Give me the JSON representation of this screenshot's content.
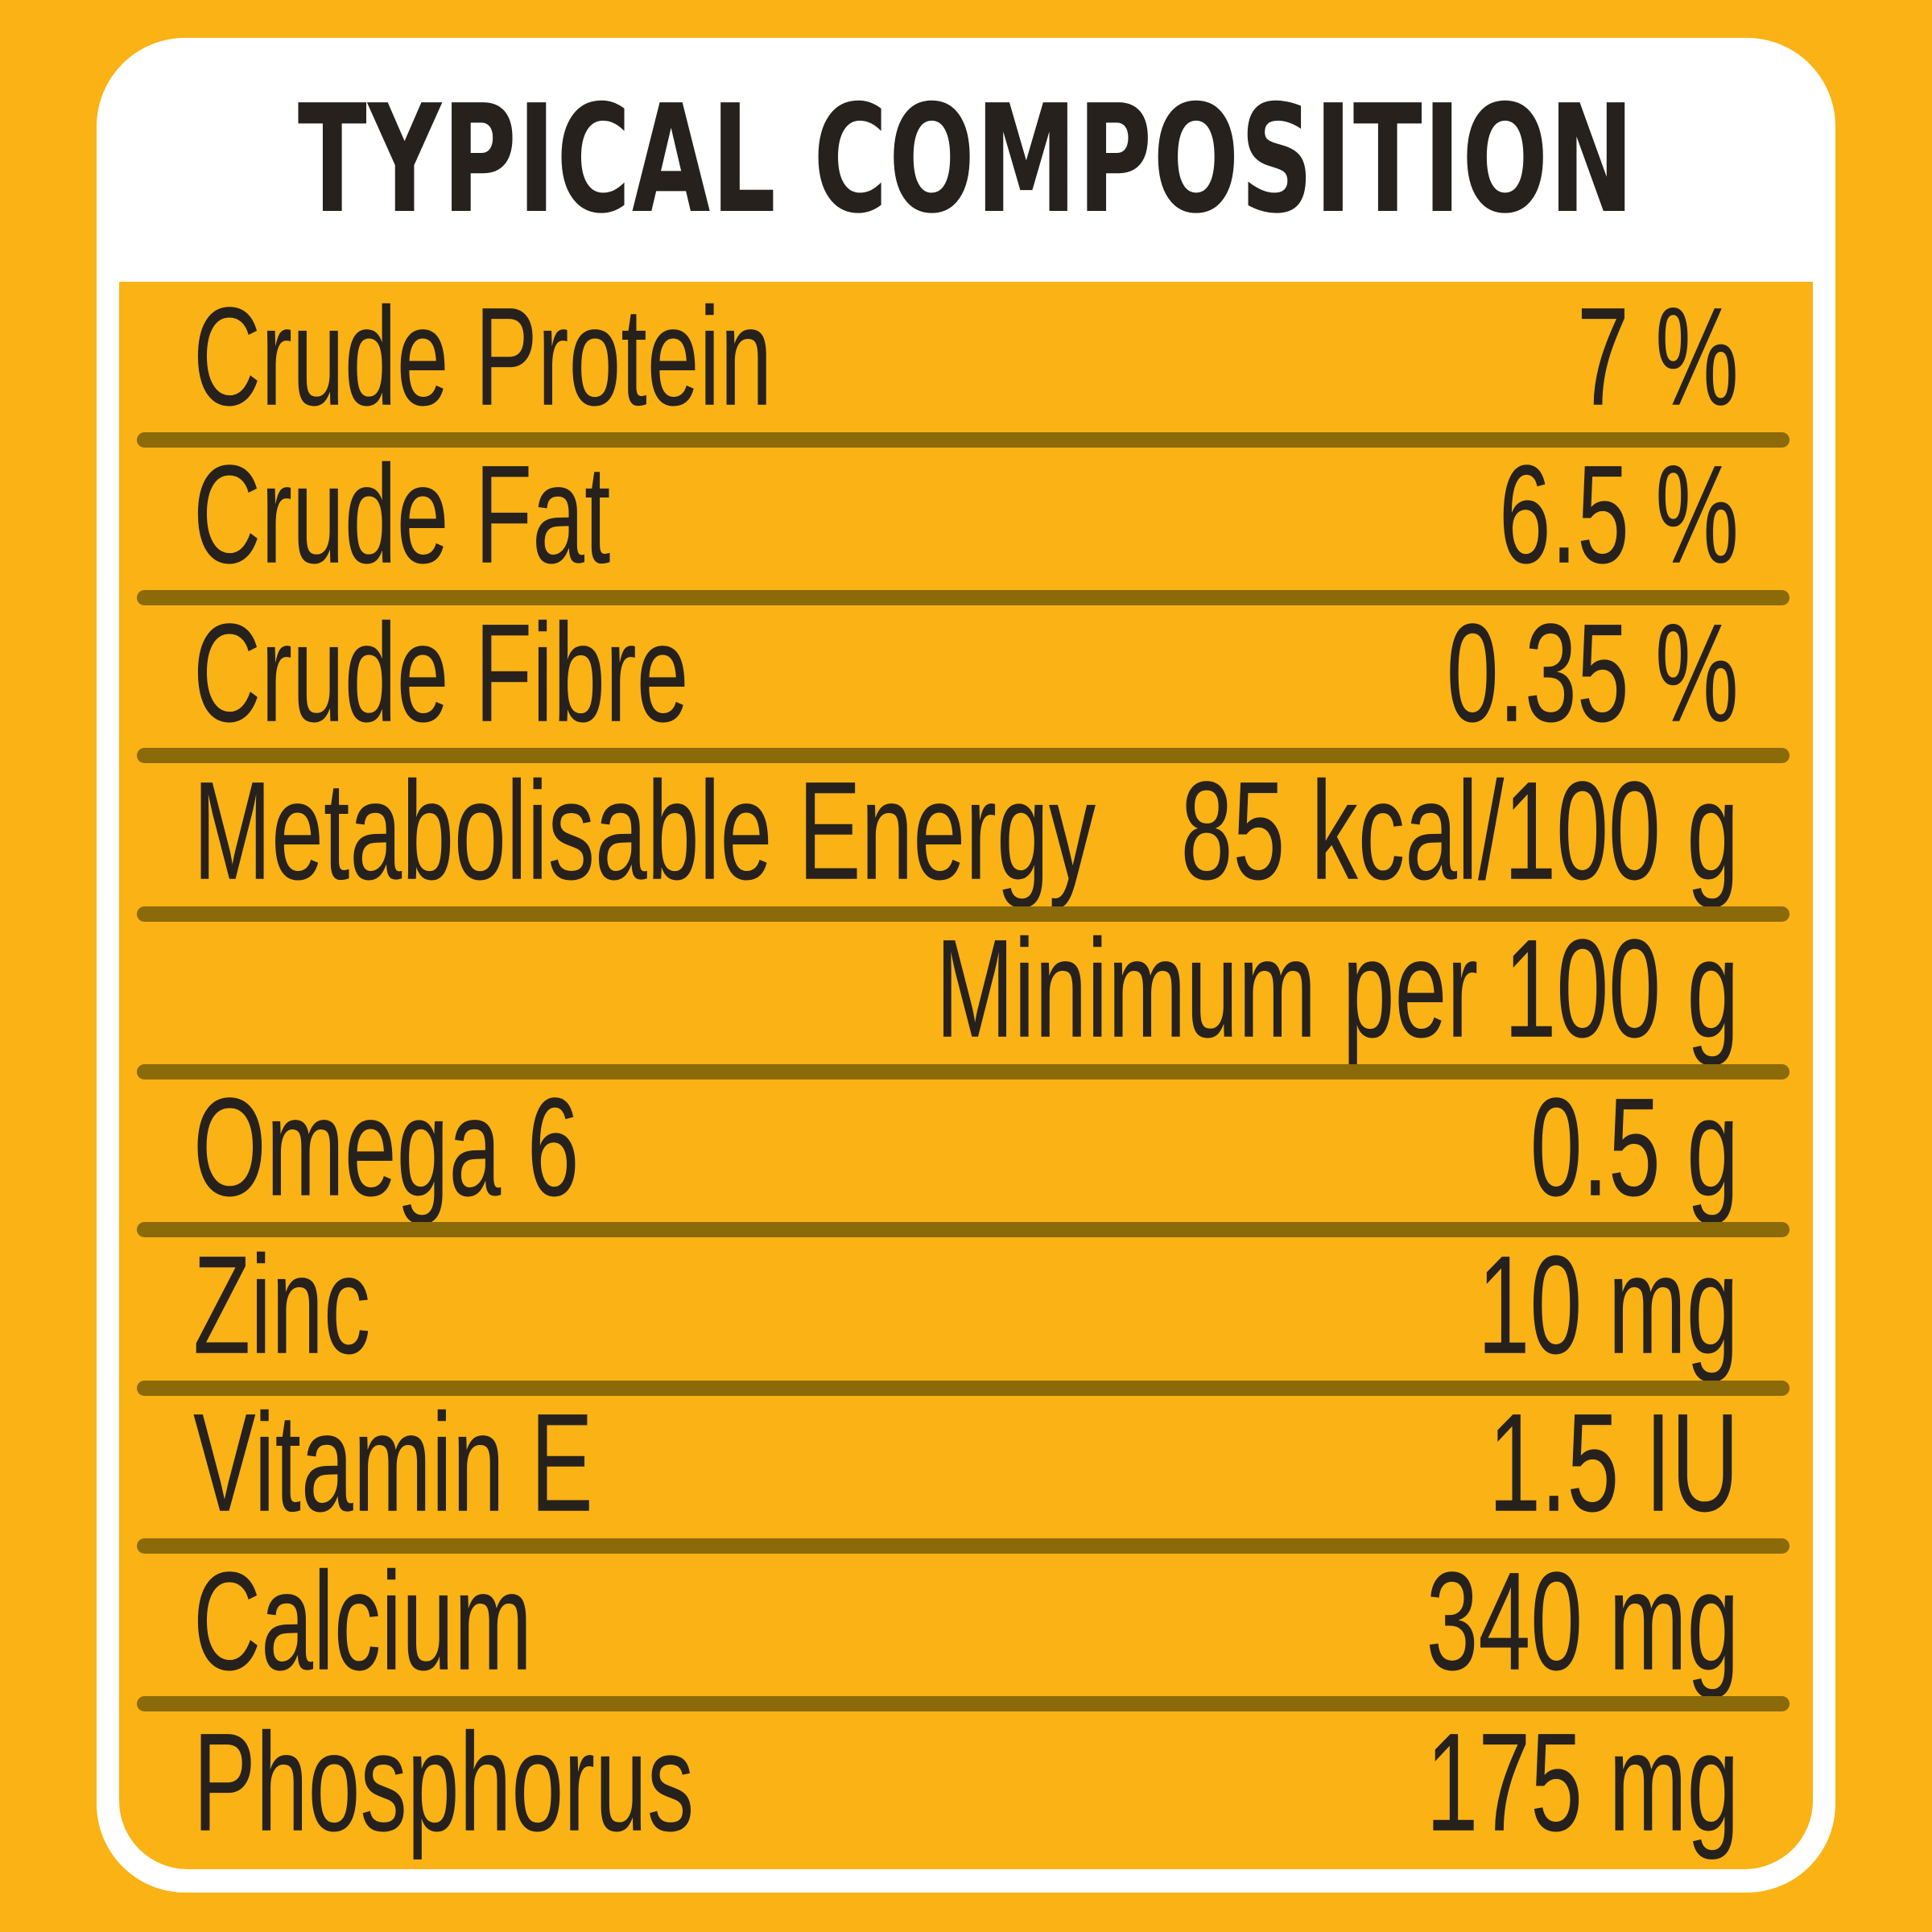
{
  "page": {
    "title": "TYPICAL COMPOSITION"
  },
  "colors": {
    "background_yellow": "#FAB214",
    "table_yellow": "#FAB214",
    "card_white": "#FFFFFF",
    "divider_olive": "#8B6A0A",
    "text_ink": "#26211C"
  },
  "table": {
    "rows": [
      {
        "label": "Crude Protein",
        "value": "7 %"
      },
      {
        "label": "Crude Fat",
        "value": "6.5 %"
      },
      {
        "label": "Crude Fibre",
        "value": "0.35 %"
      },
      {
        "label": "Metabolisable Energy",
        "value": "85 kcal/100 g"
      },
      {
        "label": "",
        "value": "Minimum per 100 g"
      },
      {
        "label": "Omega 6",
        "value": "0.5 g"
      },
      {
        "label": "Zinc",
        "value": "10 mg"
      },
      {
        "label": "Vitamin E",
        "value": "1.5 IU"
      },
      {
        "label": "Calcium",
        "value": "340 mg"
      },
      {
        "label": "Phosphorus",
        "value": "175 mg"
      }
    ]
  }
}
